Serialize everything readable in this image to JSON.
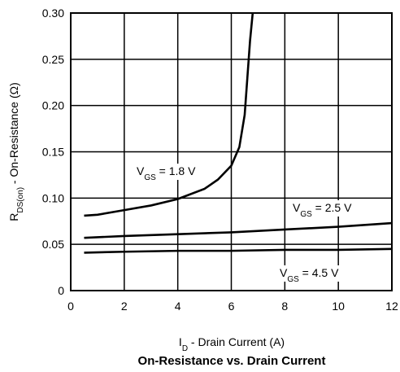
{
  "chart_data": {
    "type": "line",
    "title": "On-Resistance vs. Drain Current",
    "xlabel": {
      "main": "I",
      "sub": "D",
      "rest": " - Drain Current (A)"
    },
    "ylabel": {
      "main": "R",
      "sub": "DS(on)",
      "rest": " - On-Resistance (Ω)"
    },
    "xlim": [
      0,
      12
    ],
    "xticks": [
      0,
      2,
      4,
      6,
      8,
      10,
      12
    ],
    "ylim": [
      0,
      0.3
    ],
    "yticks": [
      0,
      0.05,
      {
        "value": 0.1,
        "label": "0.10"
      },
      0.15,
      {
        "value": 0.2,
        "label": "0.20"
      },
      0.25,
      {
        "value": 0.3,
        "label": "0.30"
      }
    ],
    "grid": true,
    "series": [
      {
        "color": "#000000",
        "x": [
          0.5,
          1,
          2,
          3,
          4,
          5,
          5.5,
          6,
          6.3,
          6.5,
          6.6,
          6.7,
          6.8
        ],
        "values": [
          0.081,
          0.082,
          0.087,
          0.092,
          0.099,
          0.11,
          0.12,
          0.135,
          0.155,
          0.19,
          0.23,
          0.27,
          0.3
        ]
      },
      {
        "color": "#000000",
        "x": [
          0.5,
          2,
          4,
          6,
          8,
          10,
          12
        ],
        "values": [
          0.057,
          0.059,
          0.061,
          0.063,
          0.066,
          0.069,
          0.073
        ]
      },
      {
        "color": "#000000",
        "x": [
          0.5,
          2,
          4,
          6,
          8,
          10,
          12
        ],
        "values": [
          0.041,
          0.042,
          0.043,
          0.043,
          0.044,
          0.044,
          0.045
        ]
      }
    ],
    "annotations": [
      {
        "main": "V",
        "sub": "GS",
        "rest": " = 1.8 V"
      },
      {
        "main": "V",
        "sub": "GS",
        "rest": " = 2.5 V"
      },
      {
        "main": "V",
        "sub": "GS",
        "rest": " = 4.5 V"
      }
    ]
  }
}
